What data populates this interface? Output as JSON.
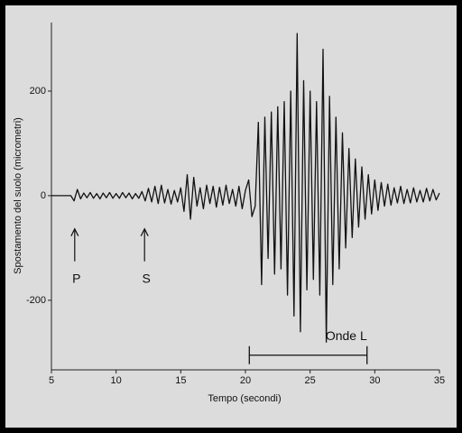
{
  "chart_data": {
    "type": "line",
    "xlabel": "Tempo (secondi)",
    "ylabel": "Spostamento del suolo (micrometri)",
    "xlim": [
      5,
      35
    ],
    "xticks": [
      5,
      10,
      15,
      20,
      25,
      30,
      35
    ],
    "ylim": [
      -333,
      331
    ],
    "yticks": [
      -200,
      0,
      200
    ],
    "color": "#111111",
    "x": [
      5,
      5.25,
      5.5,
      5.75,
      6,
      6.25,
      6.5,
      6.75,
      7,
      7.25,
      7.5,
      7.75,
      8,
      8.25,
      8.5,
      8.75,
      9,
      9.25,
      9.5,
      9.75,
      10,
      10.25,
      10.5,
      10.75,
      11,
      11.25,
      11.5,
      11.75,
      12,
      12.25,
      12.5,
      12.75,
      13,
      13.25,
      13.5,
      13.75,
      14,
      14.25,
      14.5,
      14.75,
      15,
      15.25,
      15.5,
      15.75,
      16,
      16.25,
      16.5,
      16.75,
      17,
      17.25,
      17.5,
      17.75,
      18,
      18.25,
      18.5,
      18.75,
      19,
      19.25,
      19.5,
      19.75,
      20,
      20.25,
      20.5,
      20.75,
      21,
      21.25,
      21.5,
      21.75,
      22,
      22.25,
      22.5,
      22.75,
      23,
      23.25,
      23.5,
      23.75,
      24,
      24.25,
      24.5,
      24.75,
      25,
      25.25,
      25.5,
      25.75,
      26,
      26.25,
      26.5,
      26.75,
      27,
      27.25,
      27.5,
      27.75,
      28,
      28.25,
      28.5,
      28.75,
      29,
      29.25,
      29.5,
      29.75,
      30,
      30.25,
      30.5,
      30.75,
      31,
      31.25,
      31.5,
      31.75,
      32,
      32.25,
      32.5,
      32.75,
      33,
      33.25,
      33.5,
      33.75,
      34,
      34.25,
      34.5,
      34.75,
      35
    ],
    "values": [
      0,
      0,
      0,
      0,
      0,
      0,
      0,
      -10,
      12,
      -6,
      5,
      -4,
      6,
      -5,
      4,
      -6,
      5,
      -4,
      6,
      -5,
      4,
      -5,
      6,
      -4,
      5,
      -6,
      4,
      -5,
      8,
      -10,
      14,
      -12,
      18,
      -15,
      20,
      -14,
      12,
      -16,
      10,
      -12,
      15,
      -30,
      40,
      -45,
      35,
      -20,
      15,
      -25,
      20,
      -15,
      18,
      -22,
      16,
      -18,
      20,
      -15,
      12,
      -20,
      18,
      -25,
      10,
      30,
      -40,
      -20,
      140,
      -170,
      150,
      -120,
      160,
      -150,
      170,
      -140,
      180,
      -190,
      200,
      -230,
      310,
      -260,
      220,
      -180,
      200,
      -160,
      180,
      -190,
      280,
      -280,
      190,
      -170,
      150,
      -140,
      120,
      -100,
      90,
      -80,
      70,
      -60,
      55,
      -45,
      40,
      -35,
      30,
      -28,
      25,
      -20,
      22,
      -18,
      15,
      -14,
      18,
      -15,
      12,
      -14,
      15,
      -12,
      10,
      -12,
      14,
      -10,
      12,
      -8,
      5
    ],
    "annotations": [
      {
        "text": "P",
        "x": 6.8,
        "y": -160
      },
      {
        "text": "S",
        "x": 12.2,
        "y": -160
      },
      {
        "text": "Onde L",
        "x": 27.8,
        "y": -270
      }
    ],
    "bracket": {
      "start": 20.3,
      "end": 29.4,
      "y": -305
    }
  }
}
